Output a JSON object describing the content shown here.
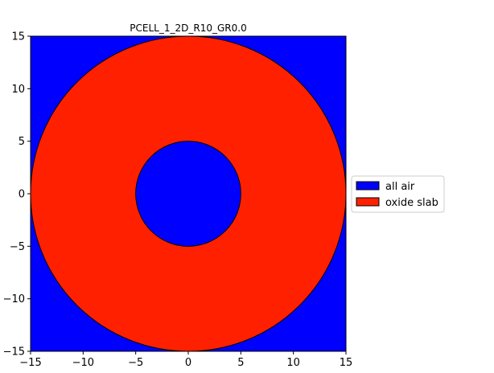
{
  "title": "PCELL_1_2D_R10_GR0.0",
  "axes": {
    "xlim": [
      -15,
      15
    ],
    "ylim": [
      -15,
      15
    ],
    "x_ticks": [
      -15,
      -10,
      -5,
      0,
      5,
      10,
      15
    ],
    "y_ticks": [
      -15,
      -10,
      -5,
      0,
      5,
      10,
      15
    ],
    "x_tick_labels": [
      "−15",
      "−10",
      "−5",
      "0",
      "5",
      "10",
      "15"
    ],
    "y_tick_labels": [
      "−15",
      "−10",
      "−5",
      "0",
      "5",
      "10",
      "15"
    ]
  },
  "geometry": {
    "background_material": "all air",
    "outer_circle_radius": 15,
    "inner_circle_radius": 5,
    "center": [
      0,
      0
    ]
  },
  "legend": {
    "placement": "right",
    "entries": [
      {
        "label": "all air",
        "color": "#0000ff"
      },
      {
        "label": "oxide slab",
        "color": "#ff2000"
      }
    ]
  },
  "colors": {
    "air": "#0000ff",
    "oxide": "#ff2000",
    "edge": "#000000"
  }
}
